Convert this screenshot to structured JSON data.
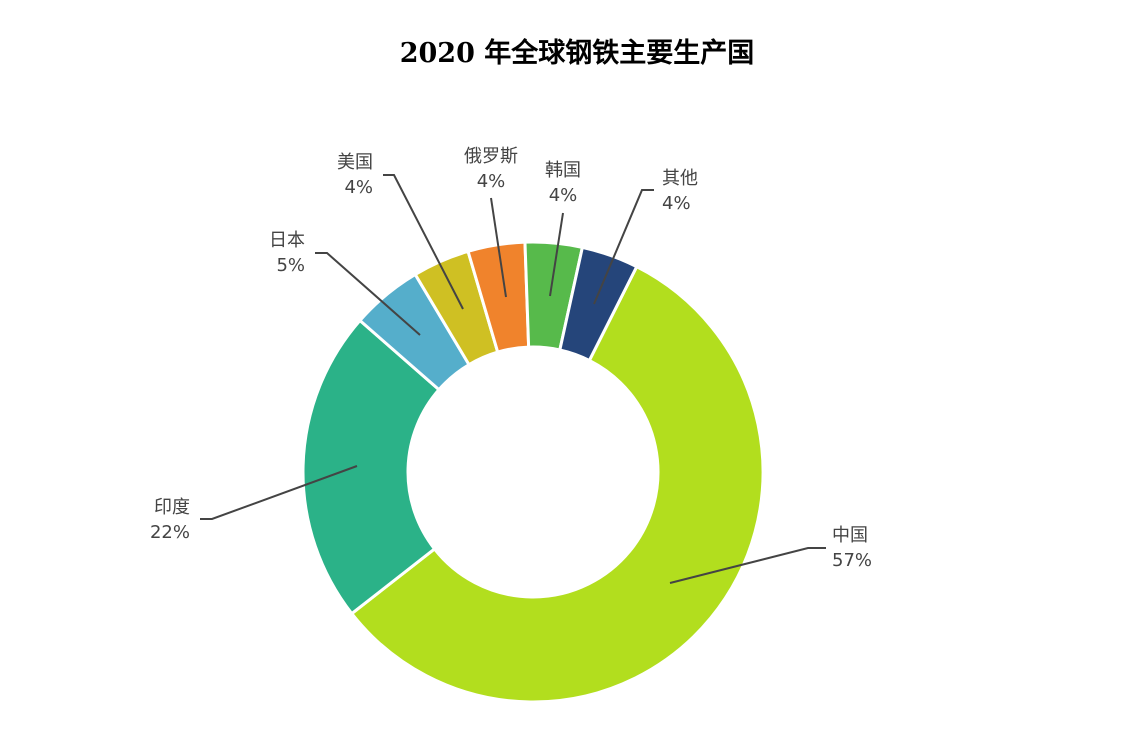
{
  "chart_data": {
    "type": "pie",
    "variant": "donut",
    "title": "2020 年全球钢铁主要生产国",
    "unit": "%",
    "categories": [
      "中国",
      "印度",
      "日本",
      "美国",
      "俄罗斯",
      "韩国",
      "其他"
    ],
    "values": [
      57,
      22,
      5,
      4,
      4,
      4,
      4
    ],
    "labels": [
      "57%",
      "22%",
      "5%",
      "4%",
      "4%",
      "4%",
      "4%"
    ],
    "colors": [
      "#b2de1e",
      "#2bb288",
      "#55aecb",
      "#cfc023",
      "#f0832c",
      "#57ba4b",
      "#25457a"
    ],
    "legend": "none",
    "data_labels": "outside with leader lines"
  }
}
